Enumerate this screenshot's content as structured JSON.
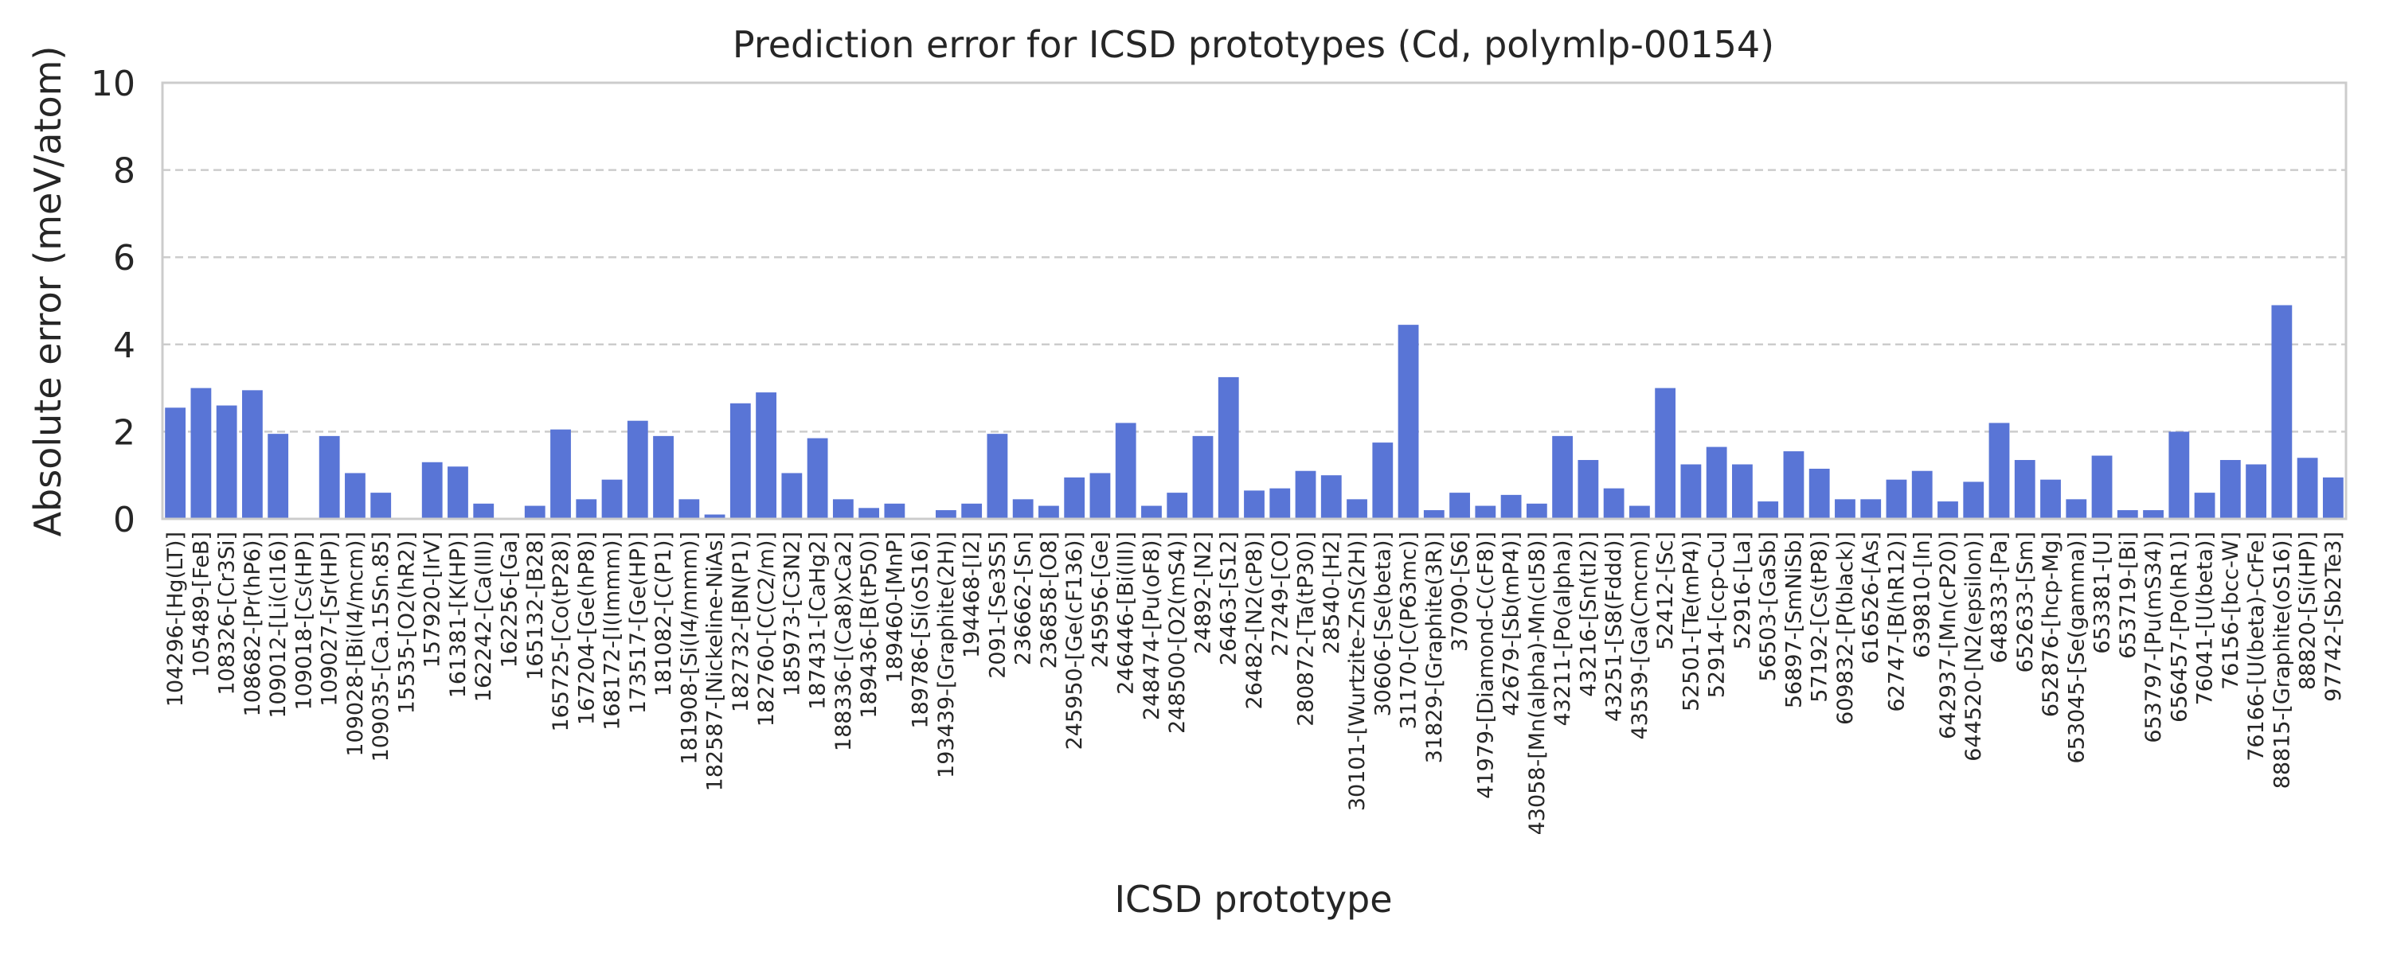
{
  "colors": {
    "bar": "#5975d6",
    "grid": "#cccccc",
    "frame": "#cccccc",
    "text": "#262626"
  },
  "chart_data": {
    "type": "bar",
    "title": "Prediction error for ICSD prototypes (Cd, polymlp-00154)",
    "xlabel": "ICSD prototype",
    "ylabel": "Absolute error (meV/atom)",
    "ylim": [
      0,
      10
    ],
    "yticks": [
      "0",
      "2",
      "4",
      "6",
      "8",
      "10"
    ],
    "grid": "horizontal dashed",
    "categories": [
      "104296-[Hg(LT)]",
      "105489-[FeB]",
      "108326-[Cr3Si]",
      "108682-[Pr(hP6)]",
      "109012-[Li(cI16)]",
      "109018-[Cs(HP)]",
      "109027-[Sr(HP)]",
      "109028-[Bi(I4/mcm)]",
      "109035-[Ca.15Sn.85]",
      "15535-[O2(hR2)]",
      "157920-[IrV]",
      "161381-[K(HP)]",
      "162242-[Ca(III)]",
      "162256-[Ga]",
      "165132-[B28]",
      "165725-[Co(tP28)]",
      "167204-[Ge(hP8)]",
      "168172-[I(Immm)]",
      "173517-[Ge(HP)]",
      "181082-[C(P1)]",
      "181908-[Si(I4/mmm)]",
      "182587-[Nickeline-NiAs]",
      "182732-[BN(P1)]",
      "182760-[C(C2/m)]",
      "185973-[C3N2]",
      "187431-[CaHg2]",
      "188336-[(Ca8)xCa2]",
      "189436-[B(tP50)]",
      "189460-[MnP]",
      "189786-[Si(oS16)]",
      "193439-[Graphite(2H)]",
      "194468-[I2]",
      "2091-[Se3S5]",
      "236662-[Sn]",
      "236858-[O8]",
      "245950-[Ge(cF136)]",
      "245956-[Ge]",
      "246446-[Bi(III)]",
      "248474-[Pu(oF8)]",
      "248500-[O2(mS4)]",
      "24892-[N2]",
      "26463-[S12]",
      "26482-[N2(cP8)]",
      "27249-[CO]",
      "280872-[Ta(tP30)]",
      "28540-[H2]",
      "30101-[Wurtzite-ZnS(2H)]",
      "30606-[Se(beta)]",
      "31170-[C(P63mc)]",
      "31829-[Graphite(3R)]",
      "37090-[S6]",
      "41979-[Diamond-C(cF8)]",
      "42679-[Sb(mP4)]",
      "43058-[Mn(alpha)-Mn(cI58)]",
      "43211-[Po(alpha)]",
      "43216-[Sn(tI2)]",
      "43251-[S8(Fddd)]",
      "43539-[Ga(Cmcm)]",
      "52412-[Sc]",
      "52501-[Te(mP4)]",
      "52914-[ccp-Cu]",
      "52916-[La]",
      "56503-[GaSb]",
      "56897-[SmNiSb]",
      "57192-[Cs(tP8)]",
      "609832-[P(black)]",
      "616526-[As]",
      "62747-[B(hR12)]",
      "639810-[In]",
      "642937-[Mn(cP20)]",
      "644520-[N2(epsilon)]",
      "648333-[Pa]",
      "652633-[Sm]",
      "652876-[hcp-Mg]",
      "653045-[Se(gamma)]",
      "653381-[U]",
      "653719-[Bi]",
      "653797-[Pu(mS34)]",
      "656457-[Po(hR1)]",
      "76041-[U(beta)]",
      "76156-[bcc-W]",
      "76166-[U(beta)-CrFe]",
      "88815-[Graphite(oS16)]",
      "88820-[Si(HP)]",
      "97742-[Sb2Te3]"
    ],
    "values": [
      2.55,
      3.0,
      2.6,
      2.95,
      1.95,
      0.0,
      1.9,
      1.05,
      0.6,
      0.0,
      1.3,
      1.2,
      0.35,
      0.0,
      0.3,
      2.05,
      0.45,
      0.9,
      2.25,
      1.9,
      0.45,
      0.1,
      2.65,
      2.9,
      1.05,
      1.85,
      0.45,
      0.25,
      0.35,
      0.0,
      0.2,
      0.35,
      1.95,
      0.45,
      0.3,
      0.95,
      1.05,
      2.2,
      0.3,
      0.6,
      1.9,
      3.25,
      0.65,
      0.7,
      1.1,
      1.0,
      0.45,
      1.75,
      4.45,
      0.2,
      0.6,
      0.3,
      0.55,
      0.35,
      1.9,
      1.35,
      0.7,
      0.3,
      3.0,
      1.25,
      1.65,
      1.25,
      0.4,
      1.55,
      1.15,
      0.45,
      0.45,
      0.9,
      1.1,
      0.4,
      0.85,
      2.2,
      1.35,
      0.9,
      0.45,
      1.45,
      0.2,
      0.2,
      2.0,
      0.6,
      1.35,
      1.25,
      4.9,
      1.4,
      0.95
    ]
  }
}
